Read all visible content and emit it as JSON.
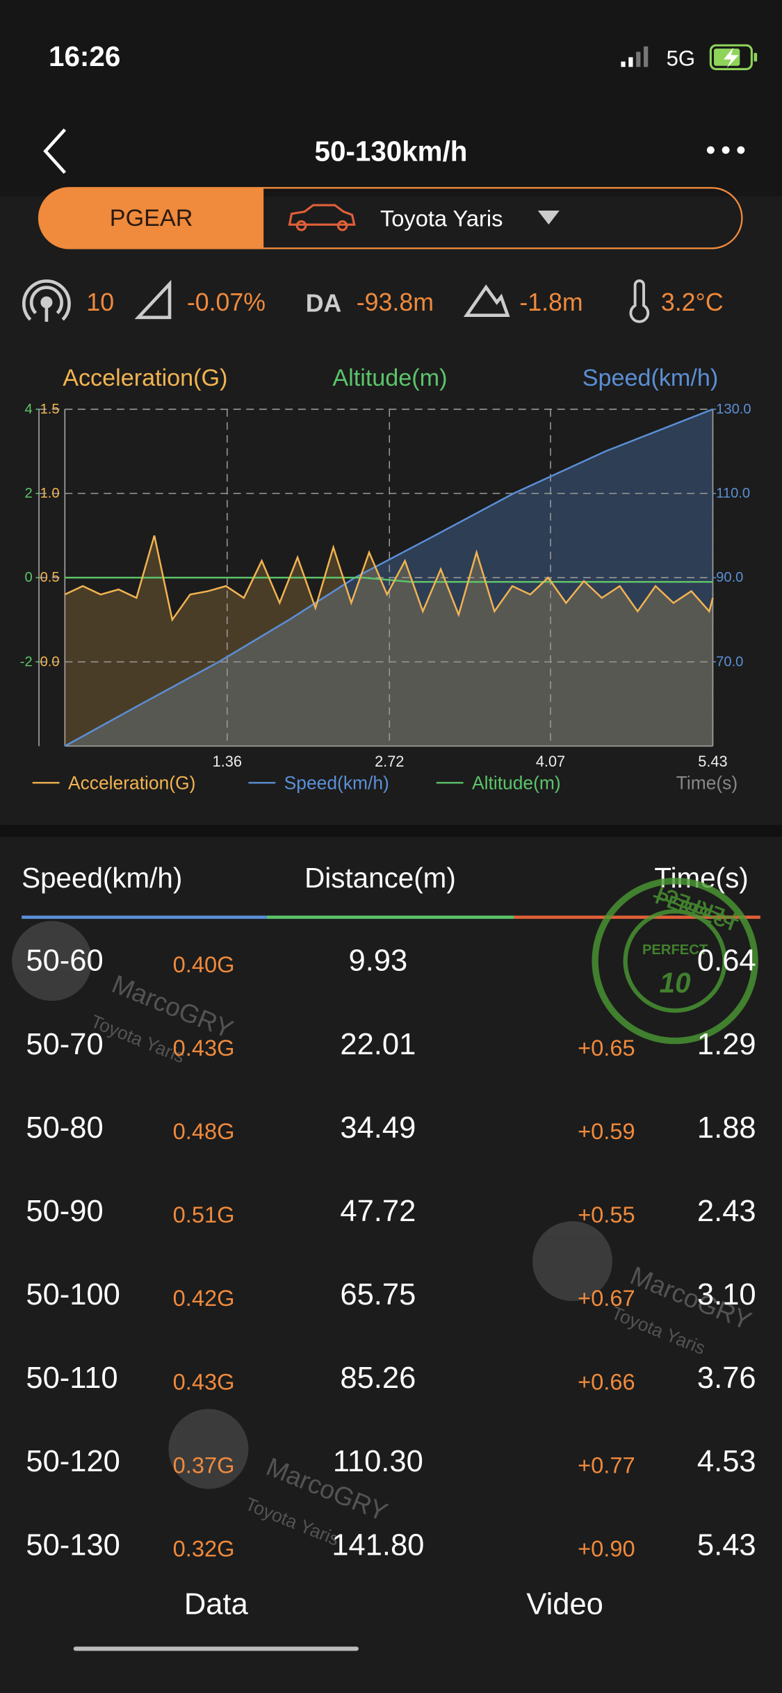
{
  "status_bar": {
    "time": "16:26",
    "network": "5G"
  },
  "header": {
    "title": "50-130km/h"
  },
  "vehicle": {
    "mode": "PGEAR",
    "car": "Toyota Yaris"
  },
  "stats": {
    "satellites": "10",
    "slope": "-0.07%",
    "da_label": "DA",
    "da": "-93.8m",
    "altitude": "-1.8m",
    "temperature": "3.2°C"
  },
  "chart_data": {
    "type": "line",
    "xlabel": "Time(s)",
    "xlim": [
      0,
      5.43
    ],
    "xticks": [
      1.36,
      2.72,
      4.07,
      5.43
    ],
    "ylim": [
      -0.5,
      1.5
    ],
    "yticks": [
      1.5,
      {
        "value": 1,
        "label": "1.0"
      },
      0.5,
      {
        "value": 0,
        "label": "0.0"
      }
    ],
    "y2lim": [
      50,
      130
    ],
    "y2ticks": [
      {
        "value": 130,
        "label": "130.0"
      },
      {
        "value": 110,
        "label": "110.0"
      },
      {
        "value": 90,
        "label": "90.0"
      },
      {
        "value": 70,
        "label": "70.0"
      }
    ],
    "y3lim": [
      -4,
      4
    ],
    "y3ticks": [
      4,
      2,
      0,
      -2
    ],
    "grid": true,
    "series": [
      {
        "name": "Acceleration(G)",
        "color": "#f2b451",
        "axis": "y",
        "x": [
          0,
          0.15,
          0.3,
          0.45,
          0.6,
          0.75,
          0.9,
          1.05,
          1.2,
          1.35,
          1.5,
          1.65,
          1.8,
          1.95,
          2.1,
          2.25,
          2.4,
          2.55,
          2.7,
          2.85,
          3.0,
          3.15,
          3.3,
          3.45,
          3.6,
          3.75,
          3.9,
          4.05,
          4.2,
          4.35,
          4.5,
          4.65,
          4.8,
          4.95,
          5.1,
          5.25,
          5.4,
          5.43
        ],
        "values": [
          0.4,
          0.45,
          0.4,
          0.43,
          0.38,
          0.75,
          0.25,
          0.4,
          0.42,
          0.45,
          0.38,
          0.6,
          0.35,
          0.62,
          0.32,
          0.68,
          0.35,
          0.65,
          0.4,
          0.6,
          0.3,
          0.55,
          0.28,
          0.65,
          0.3,
          0.45,
          0.4,
          0.5,
          0.35,
          0.48,
          0.38,
          0.45,
          0.3,
          0.45,
          0.35,
          0.42,
          0.3,
          0.38
        ]
      },
      {
        "name": "Speed(km/h)",
        "color": "#5b8fd6",
        "axis": "y2",
        "x": [
          0,
          0.64,
          1.29,
          1.88,
          2.43,
          3.1,
          3.76,
          4.53,
          5.43
        ],
        "values": [
          50,
          60,
          70,
          80,
          90,
          100,
          110,
          120,
          130
        ]
      },
      {
        "name": "Altitude(m)",
        "color": "#5cc46a",
        "axis": "y3",
        "x": [
          0,
          2.5,
          2.9,
          5.43
        ],
        "values": [
          0,
          0,
          -0.1,
          -0.1
        ]
      }
    ]
  },
  "table": {
    "headers": [
      "Speed(km/h)",
      "Distance(m)",
      "Time(s)"
    ],
    "rows": [
      {
        "range": "50-60",
        "g": "0.40G",
        "distance": "9.93",
        "time": "0.64"
      },
      {
        "range": "50-70",
        "g": "0.43G",
        "distance": "22.01",
        "delta": "+0.65",
        "time": "1.29"
      },
      {
        "range": "50-80",
        "g": "0.48G",
        "distance": "34.49",
        "delta": "+0.59",
        "time": "1.88"
      },
      {
        "range": "50-90",
        "g": "0.51G",
        "distance": "47.72",
        "delta": "+0.55",
        "time": "2.43"
      },
      {
        "range": "50-100",
        "g": "0.42G",
        "distance": "65.75",
        "delta": "+0.67",
        "time": "3.10"
      },
      {
        "range": "50-110",
        "g": "0.43G",
        "distance": "85.26",
        "delta": "+0.66",
        "time": "3.76"
      },
      {
        "range": "50-120",
        "g": "0.37G",
        "distance": "110.30",
        "delta": "+0.77",
        "time": "4.53"
      },
      {
        "range": "50-130",
        "g": "0.32G",
        "distance": "141.80",
        "delta": "+0.90",
        "time": "5.43"
      }
    ]
  },
  "watermark": {
    "user": "MarcoGRY",
    "car": "Toyota Yaris"
  },
  "stamp": {
    "word": "PERFECT",
    "score": "10"
  },
  "tabs": [
    "Data",
    "Video"
  ]
}
